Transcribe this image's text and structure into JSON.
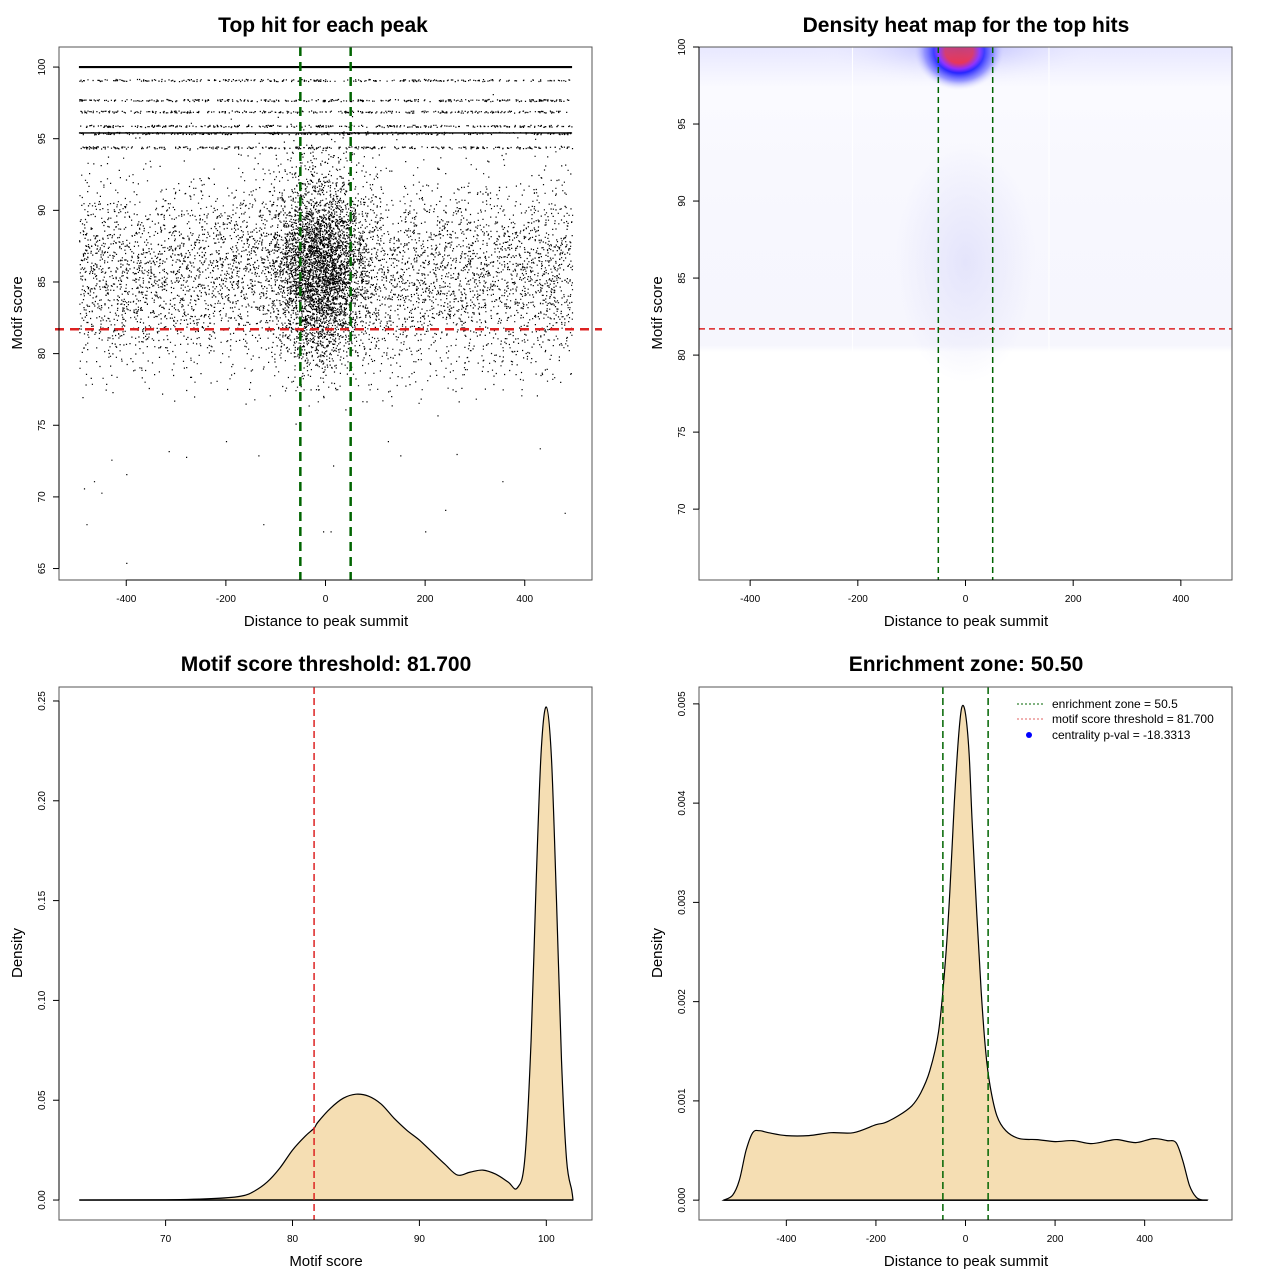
{
  "chart_data": [
    {
      "id": "scatter",
      "type": "scatter",
      "title": "Top hit for each peak",
      "xlabel": "Distance to peak summit",
      "ylabel": "Motif score",
      "xlim": [
        -535,
        535
      ],
      "ylim": [
        64.2,
        101.4
      ],
      "xticks": [
        -400,
        -200,
        0,
        200,
        400
      ],
      "yticks": [
        65,
        70,
        75,
        80,
        85,
        90,
        95,
        100
      ],
      "x_range_of_points": [
        -495,
        495
      ],
      "score_lines": [
        100.0,
        99.1,
        97.7,
        96.9,
        95.9,
        95.4,
        94.4
      ],
      "sparse_outliers": [
        {
          "x": -400,
          "y": 65.4
        },
        {
          "x": -480,
          "y": 68.1
        },
        {
          "x": -125,
          "y": 68.1
        },
        {
          "x": -5,
          "y": 67.6
        },
        {
          "x": 10,
          "y": 67.6
        },
        {
          "x": 200,
          "y": 67.6
        },
        {
          "x": 240,
          "y": 69.1
        },
        {
          "x": 480,
          "y": 68.9
        },
        {
          "x": -485,
          "y": 70.6
        },
        {
          "x": -450,
          "y": 70.3
        },
        {
          "x": -465,
          "y": 71.1
        },
        {
          "x": -400,
          "y": 71.6
        },
        {
          "x": -430,
          "y": 72.6
        },
        {
          "x": -280,
          "y": 72.8
        },
        {
          "x": -135,
          "y": 72.9
        },
        {
          "x": 15,
          "y": 72.2
        },
        {
          "x": 150,
          "y": 72.9
        },
        {
          "x": 263,
          "y": 73.0
        },
        {
          "x": 355,
          "y": 71.1
        },
        {
          "x": 430,
          "y": 73.4
        },
        {
          "x": -200,
          "y": 73.9
        },
        {
          "x": -315,
          "y": 73.2
        },
        {
          "x": 125,
          "y": 73.9
        }
      ],
      "density_center": {
        "x": -10,
        "y": 86
      },
      "hlines": [
        {
          "y": 81.7,
          "color": "#dd2222",
          "style": "dashed"
        }
      ],
      "vlines": [
        {
          "x": -50.5,
          "color": "#006400",
          "style": "dashed"
        },
        {
          "x": 50.5,
          "color": "#006400",
          "style": "dashed"
        }
      ]
    },
    {
      "id": "heatmap",
      "type": "heatmap",
      "title": "Density heat map for the top hits",
      "xlabel": "Distance to peak summit",
      "ylabel": "Motif score",
      "xlim": [
        -495,
        495
      ],
      "ylim": [
        65.4,
        100
      ],
      "xticks": [
        -400,
        -200,
        0,
        200,
        400
      ],
      "yticks": [
        70,
        75,
        80,
        85,
        90,
        95,
        100
      ],
      "hotspots": [
        {
          "x": -12,
          "y": 100,
          "intensity": 1.0
        },
        {
          "x": 0,
          "y": 85,
          "intensity": 0.12
        },
        {
          "x": 0,
          "y": 95,
          "intensity": 0.05
        }
      ],
      "colors": {
        "low": "#ffffff",
        "mid": "#0000ff",
        "high": "#ff0000"
      },
      "hlines": [
        {
          "y": 81.7,
          "color": "#dd2222",
          "style": "dashed"
        }
      ],
      "vlines": [
        {
          "x": -50.5,
          "color": "#006400",
          "style": "dashed"
        },
        {
          "x": 50.5,
          "color": "#006400",
          "style": "dashed"
        }
      ]
    },
    {
      "id": "score-density",
      "type": "area",
      "title": "Motif score threshold: 81.700",
      "xlabel": "Motif score",
      "ylabel": "Density",
      "xlim": [
        61.6,
        103.6
      ],
      "ylim": [
        -0.01,
        0.257
      ],
      "xticks": [
        70,
        80,
        90,
        100
      ],
      "yticks": [
        0.0,
        0.05,
        0.1,
        0.15,
        0.2,
        0.25
      ],
      "ytick_labels": [
        "0.00",
        "0.05",
        "0.10",
        "0.15",
        "0.20",
        "0.25"
      ],
      "fill": "#f5deb3",
      "x": [
        63.2,
        70,
        74,
        76,
        77,
        78,
        79,
        80,
        81,
        81.7,
        82,
        83,
        84,
        85,
        86,
        87,
        88,
        89,
        90,
        91,
        92,
        93,
        94,
        95,
        96,
        97,
        97.7,
        98.3,
        98.8,
        99.2,
        99.6,
        100.0,
        100.4,
        100.8,
        101.2,
        101.6,
        102.0,
        102.1
      ],
      "y": [
        0.0,
        0.0001,
        0.0008,
        0.002,
        0.0045,
        0.009,
        0.016,
        0.025,
        0.032,
        0.036,
        0.039,
        0.046,
        0.051,
        0.053,
        0.052,
        0.048,
        0.041,
        0.035,
        0.03,
        0.024,
        0.018,
        0.0125,
        0.014,
        0.015,
        0.013,
        0.009,
        0.006,
        0.02,
        0.08,
        0.16,
        0.225,
        0.247,
        0.222,
        0.15,
        0.07,
        0.02,
        0.005,
        0.0
      ],
      "vlines": [
        {
          "x": 81.7,
          "color": "#dd2222",
          "style": "dashed"
        }
      ]
    },
    {
      "id": "distance-density",
      "type": "area",
      "title": "Enrichment zone: 50.50",
      "xlabel": "Distance to peak summit",
      "ylabel": "Density",
      "xlim": [
        -595,
        595
      ],
      "ylim": [
        -0.0002,
        0.00517
      ],
      "xticks": [
        -400,
        -200,
        0,
        200,
        400
      ],
      "yticks": [
        0.0,
        0.001,
        0.002,
        0.003,
        0.004,
        0.005
      ],
      "ytick_labels": [
        "0.000",
        "0.001",
        "0.002",
        "0.003",
        "0.004",
        "0.005"
      ],
      "fill": "#f5deb3",
      "x": [
        -540,
        -520,
        -505,
        -490,
        -475,
        -460,
        -440,
        -400,
        -350,
        -300,
        -250,
        -200,
        -180,
        -150,
        -120,
        -100,
        -80,
        -60,
        -45,
        -35,
        -25,
        -15,
        -8,
        0,
        8,
        15,
        25,
        35,
        45,
        55,
        70,
        90,
        120,
        160,
        200,
        240,
        280,
        320,
        340,
        380,
        420,
        450,
        470,
        485,
        500,
        515,
        530,
        540
      ],
      "y": [
        0.0,
        5e-05,
        0.0002,
        0.0005,
        0.00068,
        0.0007,
        0.00068,
        0.00065,
        0.00065,
        0.00068,
        0.00068,
        0.00076,
        0.00078,
        0.00085,
        0.00095,
        0.00108,
        0.0013,
        0.0017,
        0.0024,
        0.0031,
        0.004,
        0.0047,
        0.00497,
        0.0049,
        0.0045,
        0.0038,
        0.0029,
        0.0021,
        0.0015,
        0.00115,
        0.00085,
        0.0007,
        0.00062,
        0.00061,
        0.00059,
        0.0006,
        0.00057,
        0.0006,
        0.00061,
        0.00058,
        0.00062,
        0.0006,
        0.00058,
        0.0004,
        0.00015,
        3e-05,
        0.0,
        0.0
      ],
      "vlines": [
        {
          "x": -50.5,
          "color": "#006400",
          "style": "dashed"
        },
        {
          "x": 50.5,
          "color": "#006400",
          "style": "dashed"
        }
      ],
      "legend": {
        "position": "top-right",
        "entries": [
          {
            "label": "enrichment zone = 50.5",
            "type": "dotted-line",
            "color": "#006400"
          },
          {
            "label": "motif score threshold = 81.700",
            "type": "dotted-line",
            "color": "#e06060"
          },
          {
            "label": "centrality p-val = -18.3313",
            "type": "point",
            "color": "#0000ff"
          }
        ]
      }
    }
  ]
}
